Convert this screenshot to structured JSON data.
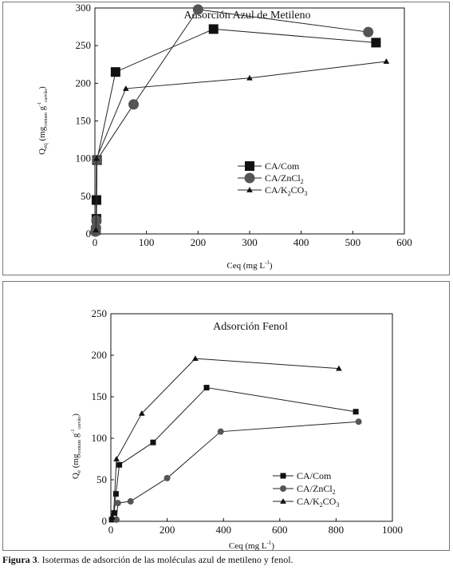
{
  "chart_data": [
    {
      "type": "line",
      "title": "Adsorción Azul de Metileno",
      "xlabel": "Ceq (mg L",
      "xlabel_sup": "-1",
      "xlabel_end": ")",
      "ylabel": "Q",
      "ylabel_sub": "eq",
      "ylabel_mid": " (mg",
      "ylabel_sub2": "contam",
      "ylabel_g": " g",
      "ylabel_sup": "-1",
      "ylabel_sub3": "carvão",
      "ylabel_end": ")",
      "xlim": [
        0,
        600
      ],
      "ylim": [
        0,
        300
      ],
      "xticks": [
        0,
        100,
        200,
        300,
        400,
        500,
        600
      ],
      "yticks": [
        0,
        50,
        100,
        150,
        200,
        250,
        300
      ],
      "grid": false,
      "legend_position": "center-right",
      "series": [
        {
          "name": "CA/Com",
          "sub": "",
          "name_end": "",
          "marker": "square",
          "marker_size": "large",
          "x": [
            2,
            3,
            3,
            4,
            40,
            230,
            545
          ],
          "y": [
            5,
            20,
            45,
            98,
            215,
            272,
            254
          ]
        },
        {
          "name": "CA/ZnCl",
          "sub": "2",
          "name_end": "",
          "marker": "circle",
          "marker_size": "large",
          "x": [
            1,
            2,
            3,
            4,
            75,
            200,
            530
          ],
          "y": [
            3,
            8,
            18,
            98,
            172,
            298,
            268
          ]
        },
        {
          "name": "CA/K",
          "sub": "2",
          "name_end": "CO",
          "sub2": "3",
          "marker": "triangle",
          "marker_size": "small",
          "x": [
            2,
            3,
            60,
            300,
            565
          ],
          "y": [
            5,
            100,
            193,
            207,
            229
          ]
        }
      ]
    },
    {
      "type": "line",
      "title": "Adsorción Fenol",
      "xlabel": "Ceq (mg L",
      "xlabel_sup": "-1",
      "xlabel_end": ")",
      "ylabel": "Q",
      "ylabel_sub": "e",
      "ylabel_mid": " (mg",
      "ylabel_sub2": "contam",
      "ylabel_g": " g",
      "ylabel_sup": "-1",
      "ylabel_sub3": "carvão",
      "ylabel_end": ")",
      "xlim": [
        0,
        1000
      ],
      "ylim": [
        0,
        250
      ],
      "xticks": [
        0,
        200,
        400,
        600,
        800,
        1000
      ],
      "yticks": [
        0,
        50,
        100,
        150,
        200,
        250
      ],
      "grid": false,
      "legend_position": "bottom-center",
      "series": [
        {
          "name": "CA/Com",
          "sub": "",
          "name_end": "",
          "marker": "square",
          "marker_size": "small",
          "x": [
            3,
            12,
            18,
            30,
            150,
            340,
            870
          ],
          "y": [
            2,
            10,
            33,
            68,
            95,
            161,
            132
          ]
        },
        {
          "name": "CA/ZnCl",
          "sub": "2",
          "name_end": "",
          "marker": "circle",
          "marker_size": "small",
          "x": [
            20,
            25,
            70,
            200,
            390,
            880
          ],
          "y": [
            2,
            22,
            24,
            52,
            108,
            120
          ]
        },
        {
          "name": "CA/K",
          "sub": "2",
          "name_end": "CO",
          "sub2": "3",
          "marker": "triangle",
          "marker_size": "small",
          "x": [
            5,
            10,
            20,
            110,
            300,
            810
          ],
          "y": [
            5,
            10,
            75,
            130,
            196,
            184
          ]
        }
      ]
    }
  ],
  "caption": {
    "label": "Figura 3",
    "text": ". Isotermas de adsorción de las moléculas azul de metileno y fenol."
  }
}
